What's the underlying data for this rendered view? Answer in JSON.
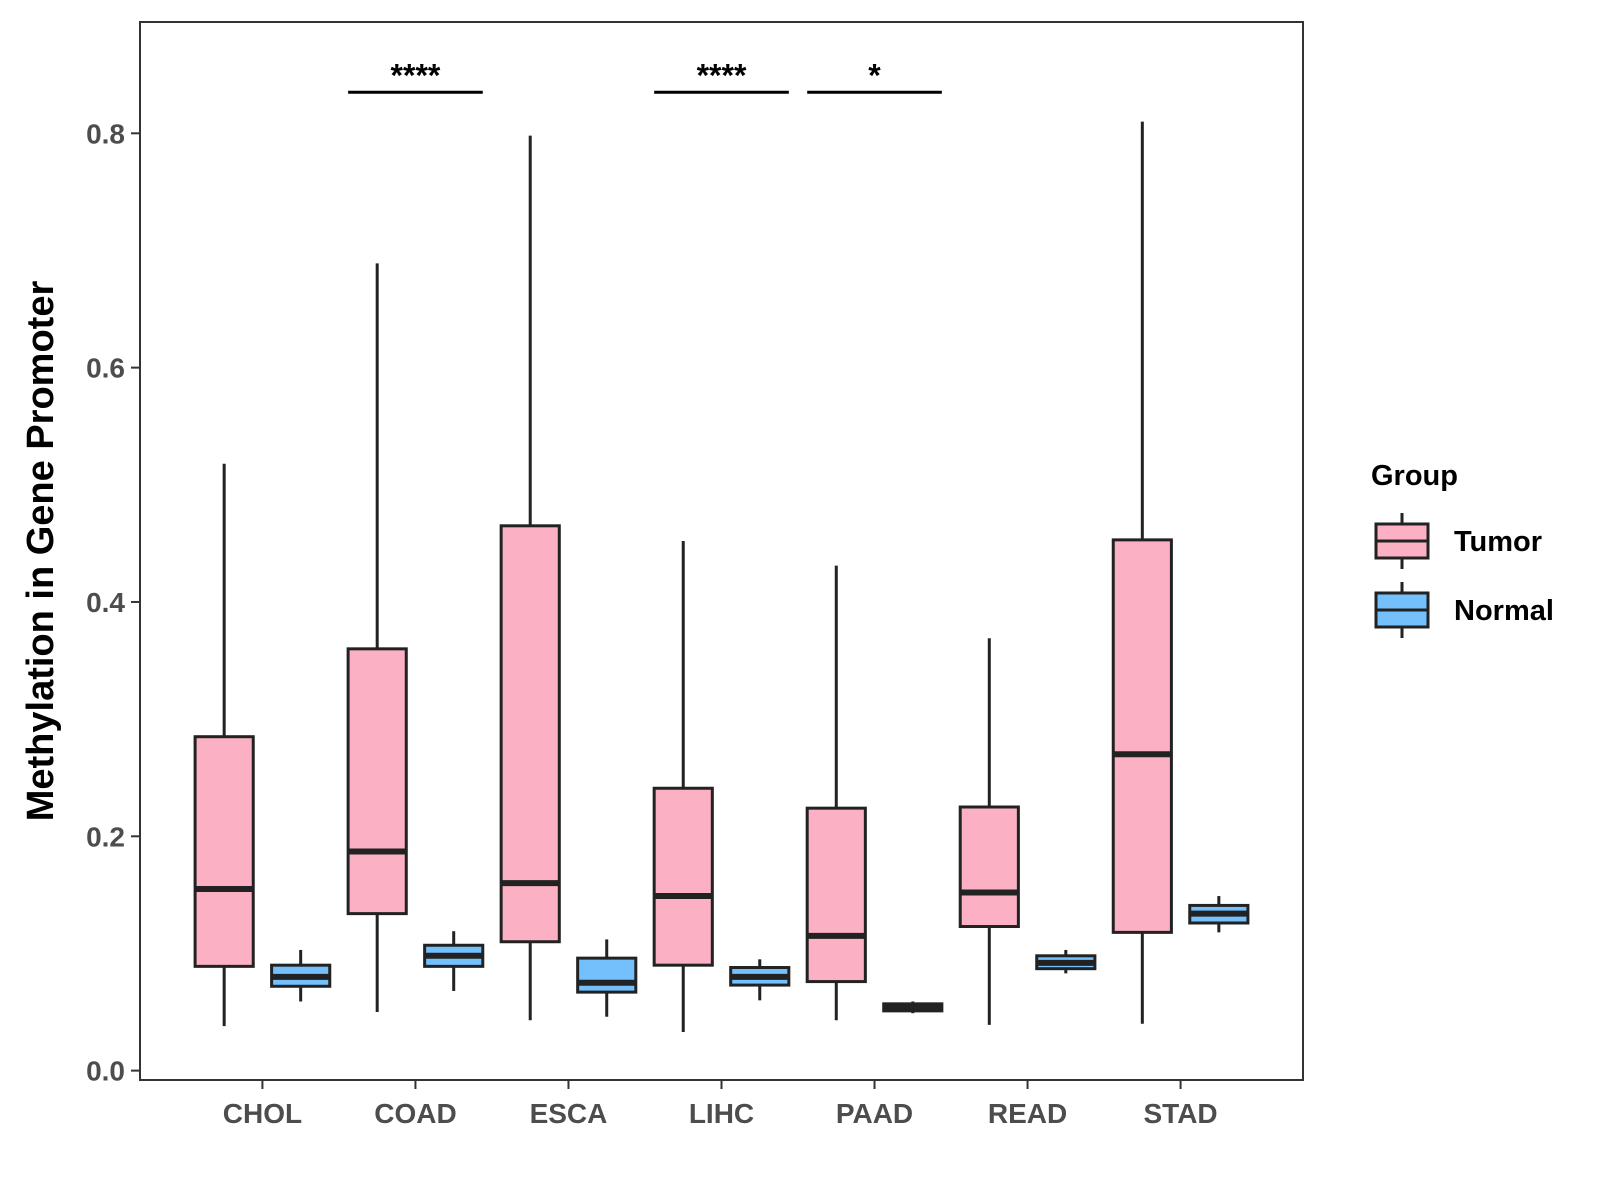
{
  "chart_data": {
    "type": "boxplot",
    "title": "",
    "xlabel": "",
    "ylabel": "Methylation in Gene Promoter",
    "ylim": [
      -0.008,
      0.895
    ],
    "y_ticks": [
      0.0,
      0.2,
      0.4,
      0.6,
      0.8
    ],
    "y_tick_labels": [
      "0.0",
      "0.2",
      "0.4",
      "0.6",
      "0.8"
    ],
    "grid": false,
    "categories": [
      "CHOL",
      "COAD",
      "ESCA",
      "LIHC",
      "PAAD",
      "READ",
      "STAD"
    ],
    "legend": {
      "title": "Group",
      "position": "right",
      "entries": [
        {
          "label": "Tumor",
          "color": "#FBB1C3"
        },
        {
          "label": "Normal",
          "color": "#74C0FC"
        }
      ]
    },
    "series": [
      {
        "name": "Tumor",
        "color": "#FBB1C3",
        "boxes": [
          {
            "category": "CHOL",
            "min": 0.038,
            "q1": 0.089,
            "median": 0.155,
            "q3": 0.285,
            "max": 0.518
          },
          {
            "category": "COAD",
            "min": 0.05,
            "q1": 0.134,
            "median": 0.187,
            "q3": 0.36,
            "max": 0.689
          },
          {
            "category": "ESCA",
            "min": 0.043,
            "q1": 0.11,
            "median": 0.16,
            "q3": 0.465,
            "max": 0.798
          },
          {
            "category": "LIHC",
            "min": 0.033,
            "q1": 0.09,
            "median": 0.149,
            "q3": 0.241,
            "max": 0.452
          },
          {
            "category": "PAAD",
            "min": 0.043,
            "q1": 0.076,
            "median": 0.115,
            "q3": 0.224,
            "max": 0.431
          },
          {
            "category": "READ",
            "min": 0.039,
            "q1": 0.123,
            "median": 0.152,
            "q3": 0.225,
            "max": 0.369
          },
          {
            "category": "STAD",
            "min": 0.04,
            "q1": 0.118,
            "median": 0.27,
            "q3": 0.453,
            "max": 0.81
          }
        ]
      },
      {
        "name": "Normal",
        "color": "#74C0FC",
        "boxes": [
          {
            "category": "CHOL",
            "min": 0.059,
            "q1": 0.072,
            "median": 0.08,
            "q3": 0.09,
            "max": 0.103
          },
          {
            "category": "COAD",
            "min": 0.068,
            "q1": 0.089,
            "median": 0.098,
            "q3": 0.107,
            "max": 0.119
          },
          {
            "category": "ESCA",
            "min": 0.046,
            "q1": 0.067,
            "median": 0.075,
            "q3": 0.096,
            "max": 0.112
          },
          {
            "category": "LIHC",
            "min": 0.06,
            "q1": 0.073,
            "median": 0.08,
            "q3": 0.088,
            "max": 0.095
          },
          {
            "category": "PAAD",
            "min": 0.049,
            "q1": 0.051,
            "median": 0.054,
            "q3": 0.057,
            "max": 0.059
          },
          {
            "category": "READ",
            "min": 0.083,
            "q1": 0.087,
            "median": 0.092,
            "q3": 0.098,
            "max": 0.103
          },
          {
            "category": "STAD",
            "min": 0.118,
            "q1": 0.126,
            "median": 0.134,
            "q3": 0.141,
            "max": 0.149
          }
        ]
      }
    ],
    "significance": [
      {
        "category": "COAD",
        "label": "****",
        "y": 0.835
      },
      {
        "category": "LIHC",
        "label": "****",
        "y": 0.835
      },
      {
        "category": "PAAD",
        "label": "*",
        "y": 0.835
      }
    ]
  }
}
